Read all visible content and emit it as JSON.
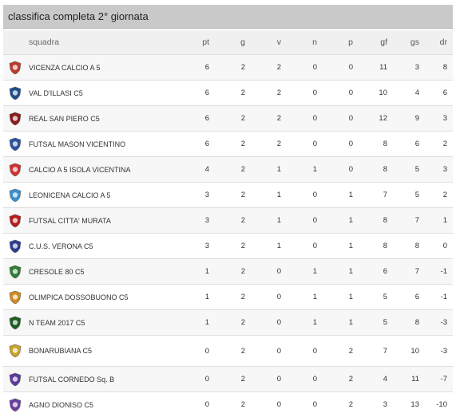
{
  "title": "classifica completa 2° giornata",
  "headers": {
    "team": "squadra",
    "pt": "pt",
    "g": "g",
    "v": "v",
    "n": "n",
    "p": "p",
    "gf": "gf",
    "gs": "gs",
    "dr": "dr"
  },
  "rows": [
    {
      "team": "VICENZA CALCIO A 5",
      "pt": "6",
      "g": "2",
      "v": "2",
      "n": "0",
      "p": "0",
      "gf": "11",
      "gs": "3",
      "dr": "8",
      "logo": "vicenza-logo-icon",
      "color": "#c0392b"
    },
    {
      "team": "VAL D'ILLASI C5",
      "pt": "6",
      "g": "2",
      "v": "2",
      "n": "0",
      "p": "0",
      "gf": "10",
      "gs": "4",
      "dr": "6",
      "logo": "val-dillasi-logo-icon",
      "color": "#1f4e8c"
    },
    {
      "team": "REAL SAN PIERO C5",
      "pt": "6",
      "g": "2",
      "v": "2",
      "n": "0",
      "p": "0",
      "gf": "12",
      "gs": "9",
      "dr": "3",
      "logo": "real-san-piero-logo-icon",
      "color": "#8b1a1a"
    },
    {
      "team": "FUTSAL MASON VICENTINO",
      "pt": "6",
      "g": "2",
      "v": "2",
      "n": "0",
      "p": "0",
      "gf": "8",
      "gs": "6",
      "dr": "2",
      "logo": "mason-vicentino-logo-icon",
      "color": "#2a52a0"
    },
    {
      "team": "CALCIO A 5 ISOLA VICENTINA",
      "pt": "4",
      "g": "2",
      "v": "1",
      "n": "1",
      "p": "0",
      "gf": "8",
      "gs": "5",
      "dr": "3",
      "logo": "isola-vicentina-logo-icon",
      "color": "#d32f2f"
    },
    {
      "team": "LEONICENA CALCIO A 5",
      "pt": "3",
      "g": "2",
      "v": "1",
      "n": "0",
      "p": "1",
      "gf": "7",
      "gs": "5",
      "dr": "2",
      "logo": "leonicena-logo-icon",
      "color": "#3a8fd0"
    },
    {
      "team": "FUTSAL CITTA' MURATA",
      "pt": "3",
      "g": "2",
      "v": "1",
      "n": "0",
      "p": "1",
      "gf": "8",
      "gs": "7",
      "dr": "1",
      "logo": "citta-murata-logo-icon",
      "color": "#b71c1c"
    },
    {
      "team": "C.U.S. VERONA C5",
      "pt": "3",
      "g": "2",
      "v": "1",
      "n": "0",
      "p": "1",
      "gf": "8",
      "gs": "8",
      "dr": "0",
      "logo": "cus-verona-logo-icon",
      "color": "#2c3e8f"
    },
    {
      "team": "CRESOLE 80 C5",
      "pt": "1",
      "g": "2",
      "v": "0",
      "n": "1",
      "p": "1",
      "gf": "6",
      "gs": "7",
      "dr": "-1",
      "logo": "cresole-logo-icon",
      "color": "#2e7d32"
    },
    {
      "team": "OLIMPICA DOSSOBUONO C5",
      "pt": "1",
      "g": "2",
      "v": "0",
      "n": "1",
      "p": "1",
      "gf": "5",
      "gs": "6",
      "dr": "-1",
      "logo": "olimpica-dossobuono-logo-icon",
      "color": "#d08a1e"
    },
    {
      "team": "N TEAM 2017 C5",
      "pt": "1",
      "g": "2",
      "v": "0",
      "n": "1",
      "p": "1",
      "gf": "5",
      "gs": "8",
      "dr": "-3",
      "logo": "n-team-logo-icon",
      "color": "#1b5e20"
    },
    {
      "team": "BONARUBIANA C5",
      "pt": "0",
      "g": "2",
      "v": "0",
      "n": "0",
      "p": "2",
      "gf": "7",
      "gs": "10",
      "dr": "-3",
      "logo": "bonarubiana-logo-icon",
      "color": "#c9a227"
    },
    {
      "team": "FUTSAL CORNEDO Sq. B",
      "pt": "0",
      "g": "2",
      "v": "0",
      "n": "0",
      "p": "2",
      "gf": "4",
      "gs": "11",
      "dr": "-7",
      "logo": "cornedo-logo-icon",
      "color": "#5c3a9e"
    },
    {
      "team": "AGNO DIONISO C5",
      "pt": "0",
      "g": "2",
      "v": "0",
      "n": "0",
      "p": "2",
      "gf": "3",
      "gs": "13",
      "dr": "-10",
      "logo": "agno-dioniso-logo-icon",
      "color": "#6a3fa0"
    }
  ]
}
